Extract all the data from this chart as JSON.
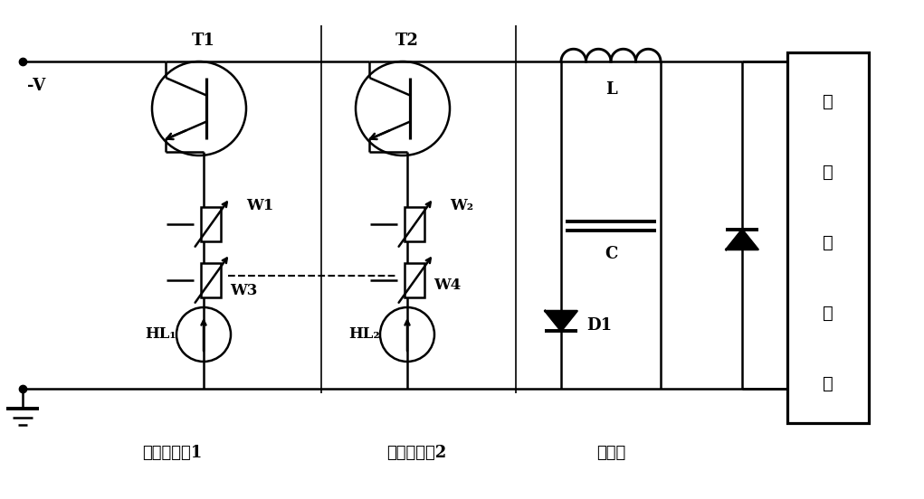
{
  "bg_color": "#ffffff",
  "line_color": "#000000",
  "label_V": "-V",
  "label_T1": "T1",
  "label_T2": "T2",
  "label_W1": "W1",
  "label_W2": "W₂",
  "label_W3": "W3",
  "label_W4": "W4",
  "label_HL1": "HL₁",
  "label_HL2": "HL₂",
  "label_L": "L",
  "label_C": "C",
  "label_D1": "D1",
  "label_laser_1": "激",
  "label_laser_2": "光",
  "label_laser_3": "器",
  "label_laser_4": "组",
  "label_laser_5": "件",
  "label_section1": "可调恒流源1",
  "label_section2": "可调恒流源2",
  "label_section3": "滤波器",
  "font_size_label": 11,
  "font_size_section": 12,
  "font_size_laser": 13
}
